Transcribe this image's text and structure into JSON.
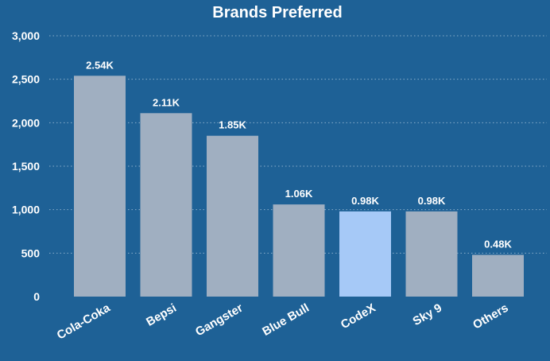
{
  "chart_data": {
    "type": "bar",
    "title": "Brands Preferred",
    "categories": [
      "Cola-Coka",
      "Bepsi",
      "Gangster",
      "Blue Bull",
      "CodeX",
      "Sky 9",
      "Others"
    ],
    "values": [
      2540,
      2110,
      1850,
      1060,
      980,
      980,
      480
    ],
    "data_labels": [
      "2.54K",
      "2.11K",
      "1.85K",
      "1.06K",
      "0.98K",
      "0.98K",
      "0.48K"
    ],
    "ylim": [
      0,
      3000
    ],
    "yticks": [
      0,
      500,
      1000,
      1500,
      2000,
      2500,
      3000
    ],
    "ytick_labels": [
      "0",
      "500",
      "1,000",
      "1,500",
      "2,000",
      "2,500",
      "3,000"
    ],
    "xlabel": "",
    "ylabel": "",
    "grid": true,
    "legend": false,
    "highlight_category": "CodeX",
    "colors": {
      "background": "#1e6196",
      "bar": "#a0afc1",
      "highlight_bar": "#a6c9f7",
      "text": "#ffffff",
      "grid": "#b9cfe2"
    }
  }
}
